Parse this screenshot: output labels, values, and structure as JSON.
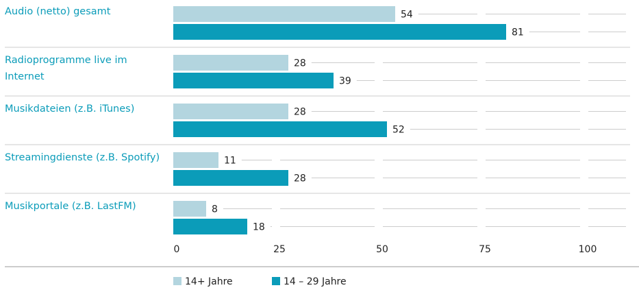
{
  "chart_data": {
    "type": "bar",
    "orientation": "horizontal",
    "categories": [
      "Audio (netto) gesamt",
      "Radioprogramme live im Internet",
      "Musikdateien (z.B. iTunes)",
      "Streamingdienste (z.B. Spotify)",
      "Musikportale (z.B. LastFM)"
    ],
    "series": [
      {
        "name": "14+ Jahre",
        "color": "#b3d5df",
        "values": [
          54,
          28,
          28,
          11,
          8
        ]
      },
      {
        "name": "14 – 29 Jahre",
        "color": "#0b9cb9",
        "values": [
          81,
          39,
          52,
          28,
          18
        ]
      }
    ],
    "xlim": [
      0,
      100
    ],
    "xticks": [
      0,
      25,
      50,
      75,
      100
    ],
    "grid": true
  }
}
